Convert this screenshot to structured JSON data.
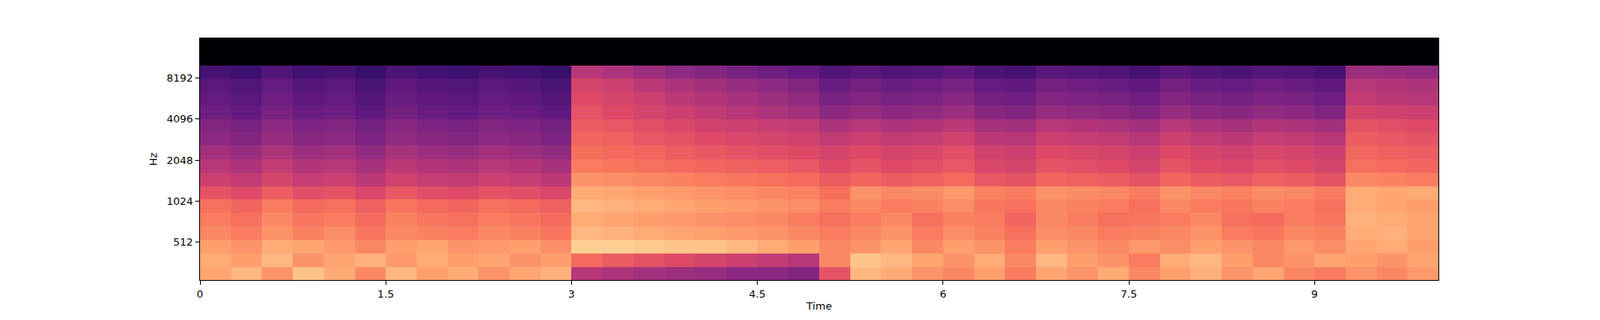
{
  "chart_data": {
    "type": "heatmap",
    "xlabel": "Time",
    "ylabel": "Hz",
    "log": "y",
    "xlim": [
      0,
      10
    ],
    "xticks": [
      0,
      1.5,
      3,
      4.5,
      6,
      7.5,
      9
    ],
    "ylim": [
      270,
      16000
    ],
    "yticks": [
      512,
      1024,
      2048,
      4096,
      8192
    ],
    "zlim": [
      -80,
      0
    ],
    "x": [
      0.125,
      0.375,
      0.625,
      0.875,
      1.125,
      1.375,
      1.625,
      1.875,
      2.125,
      2.375,
      2.625,
      2.875,
      3.125,
      3.375,
      3.625,
      3.875,
      4.125,
      4.375,
      4.625,
      4.875,
      5.125,
      5.375,
      5.625,
      5.875,
      6.125,
      6.375,
      6.625,
      6.875,
      7.125,
      7.375,
      7.625,
      7.875,
      8.125,
      8.375,
      8.625,
      8.875,
      9.125,
      9.375,
      9.625,
      9.875
    ],
    "y": [
      300,
      380,
      475,
      600,
      750,
      940,
      1180,
      1480,
      1860,
      2330,
      2920,
      3670,
      4600,
      5770,
      7240,
      9080,
      11400,
      14300
    ],
    "z": [
      [
        -15,
        -12,
        -18,
        -10,
        -14,
        -20,
        -12,
        -16,
        -14,
        -18,
        -15,
        -13,
        -40,
        -42,
        -44,
        -45,
        -46,
        -48,
        -48,
        -50,
        -30,
        -12,
        -14,
        -18,
        -20,
        -16,
        -22,
        -15,
        -18,
        -14,
        -20,
        -16,
        -13,
        -18,
        -15,
        -20,
        -22,
        -18,
        -20,
        -17
      ],
      [
        -14,
        -16,
        -12,
        -18,
        -15,
        -13,
        -17,
        -14,
        -16,
        -15,
        -18,
        -16,
        -25,
        -28,
        -30,
        -32,
        -34,
        -36,
        -38,
        -40,
        -20,
        -10,
        -12,
        -15,
        -18,
        -14,
        -20,
        -12,
        -16,
        -18,
        -22,
        -14,
        -12,
        -16,
        -20,
        -18,
        -15,
        -16,
        -18,
        -15
      ],
      [
        -16,
        -18,
        -14,
        -15,
        -17,
        -20,
        -16,
        -15,
        -18,
        -17,
        -16,
        -19,
        -8,
        -8,
        -9,
        -10,
        -10,
        -12,
        -14,
        -16,
        -20,
        -18,
        -15,
        -20,
        -16,
        -18,
        -22,
        -16,
        -18,
        -20,
        -17,
        -19,
        -16,
        -18,
        -20,
        -17,
        -19,
        -15,
        -14,
        -16
      ],
      [
        -20,
        -22,
        -18,
        -21,
        -19,
        -23,
        -20,
        -21,
        -22,
        -20,
        -21,
        -23,
        -12,
        -13,
        -14,
        -15,
        -16,
        -17,
        -18,
        -20,
        -22,
        -20,
        -18,
        -22,
        -19,
        -21,
        -24,
        -19,
        -20,
        -22,
        -21,
        -20,
        -18,
        -22,
        -23,
        -20,
        -21,
        -14,
        -13,
        -15
      ],
      [
        -22,
        -24,
        -20,
        -23,
        -22,
        -25,
        -21,
        -23,
        -24,
        -22,
        -23,
        -25,
        -14,
        -15,
        -16,
        -17,
        -18,
        -19,
        -20,
        -22,
        -24,
        -22,
        -20,
        -24,
        -21,
        -22,
        -26,
        -20,
        -22,
        -24,
        -23,
        -22,
        -20,
        -24,
        -25,
        -22,
        -23,
        -13,
        -14,
        -15
      ],
      [
        -24,
        -26,
        -22,
        -25,
        -24,
        -27,
        -23,
        -25,
        -26,
        -24,
        -25,
        -27,
        -12,
        -13,
        -14,
        -15,
        -16,
        -17,
        -18,
        -19,
        -22,
        -20,
        -22,
        -21,
        -19,
        -23,
        -24,
        -20,
        -21,
        -22,
        -24,
        -20,
        -22,
        -23,
        -21,
        -22,
        -24,
        -14,
        -15,
        -16
      ],
      [
        -30,
        -32,
        -28,
        -31,
        -30,
        -33,
        -29,
        -31,
        -32,
        -30,
        -31,
        -33,
        -14,
        -15,
        -16,
        -17,
        -18,
        -19,
        -20,
        -21,
        -24,
        -18,
        -20,
        -19,
        -17,
        -21,
        -22,
        -18,
        -19,
        -20,
        -22,
        -18,
        -20,
        -21,
        -19,
        -20,
        -22,
        -14,
        -15,
        -14
      ],
      [
        -36,
        -38,
        -34,
        -37,
        -36,
        -39,
        -35,
        -37,
        -38,
        -36,
        -37,
        -39,
        -18,
        -19,
        -20,
        -21,
        -22,
        -23,
        -24,
        -25,
        -28,
        -26,
        -28,
        -27,
        -25,
        -29,
        -30,
        -26,
        -27,
        -28,
        -30,
        -26,
        -28,
        -29,
        -27,
        -28,
        -30,
        -20,
        -21,
        -22
      ],
      [
        -40,
        -42,
        -38,
        -41,
        -40,
        -43,
        -39,
        -41,
        -42,
        -40,
        -41,
        -43,
        -22,
        -23,
        -24,
        -25,
        -26,
        -27,
        -28,
        -29,
        -32,
        -30,
        -32,
        -31,
        -29,
        -33,
        -34,
        -30,
        -31,
        -32,
        -34,
        -30,
        -32,
        -33,
        -31,
        -32,
        -34,
        -24,
        -25,
        -26
      ],
      [
        -44,
        -46,
        -42,
        -45,
        -44,
        -47,
        -43,
        -45,
        -46,
        -44,
        -45,
        -47,
        -24,
        -25,
        -26,
        -28,
        -29,
        -30,
        -31,
        -32,
        -34,
        -32,
        -34,
        -33,
        -31,
        -35,
        -36,
        -32,
        -33,
        -34,
        -36,
        -32,
        -34,
        -35,
        -33,
        -34,
        -36,
        -26,
        -27,
        -28
      ],
      [
        -48,
        -50,
        -46,
        -49,
        -48,
        -51,
        -47,
        -49,
        -50,
        -48,
        -49,
        -51,
        -26,
        -27,
        -29,
        -30,
        -32,
        -33,
        -34,
        -35,
        -38,
        -36,
        -38,
        -37,
        -35,
        -39,
        -40,
        -36,
        -37,
        -38,
        -40,
        -36,
        -38,
        -39,
        -37,
        -38,
        -40,
        -28,
        -29,
        -30
      ],
      [
        -50,
        -52,
        -48,
        -51,
        -50,
        -53,
        -49,
        -51,
        -52,
        -50,
        -51,
        -53,
        -28,
        -29,
        -31,
        -33,
        -35,
        -36,
        -37,
        -38,
        -42,
        -40,
        -42,
        -41,
        -39,
        -43,
        -44,
        -40,
        -41,
        -42,
        -44,
        -40,
        -42,
        -43,
        -41,
        -42,
        -44,
        -30,
        -31,
        -32
      ],
      [
        -54,
        -56,
        -52,
        -55,
        -54,
        -57,
        -53,
        -55,
        -56,
        -54,
        -55,
        -57,
        -30,
        -32,
        -34,
        -36,
        -38,
        -40,
        -42,
        -44,
        -48,
        -46,
        -48,
        -47,
        -45,
        -49,
        -50,
        -46,
        -47,
        -48,
        -50,
        -46,
        -48,
        -49,
        -47,
        -48,
        -50,
        -34,
        -35,
        -36
      ],
      [
        -56,
        -58,
        -54,
        -57,
        -56,
        -59,
        -55,
        -57,
        -58,
        -56,
        -57,
        -59,
        -32,
        -34,
        -36,
        -39,
        -41,
        -43,
        -45,
        -47,
        -52,
        -50,
        -52,
        -51,
        -49,
        -53,
        -54,
        -50,
        -51,
        -52,
        -54,
        -50,
        -52,
        -53,
        -51,
        -52,
        -54,
        -38,
        -39,
        -40
      ],
      [
        -58,
        -60,
        -56,
        -59,
        -58,
        -61,
        -57,
        -59,
        -60,
        -58,
        -59,
        -61,
        -34,
        -36,
        -39,
        -42,
        -44,
        -46,
        -48,
        -50,
        -55,
        -53,
        -55,
        -54,
        -52,
        -56,
        -57,
        -53,
        -54,
        -55,
        -57,
        -53,
        -55,
        -56,
        -54,
        -55,
        -57,
        -40,
        -41,
        -42
      ],
      [
        -62,
        -64,
        -60,
        -63,
        -62,
        -65,
        -61,
        -63,
        -64,
        -62,
        -63,
        -65,
        -40,
        -42,
        -45,
        -48,
        -50,
        -52,
        -54,
        -56,
        -60,
        -58,
        -60,
        -59,
        -57,
        -61,
        -62,
        -58,
        -59,
        -60,
        -62,
        -58,
        -60,
        -61,
        -59,
        -60,
        -62,
        -45,
        -46,
        -47
      ],
      [
        -80,
        -80,
        -80,
        -80,
        -80,
        -80,
        -80,
        -80,
        -80,
        -80,
        -80,
        -80,
        -80,
        -80,
        -80,
        -80,
        -80,
        -80,
        -80,
        -80,
        -80,
        -80,
        -80,
        -80,
        -80,
        -80,
        -80,
        -80,
        -80,
        -80,
        -80,
        -80,
        -80,
        -80,
        -80,
        -80,
        -80,
        -80,
        -80,
        -80
      ],
      [
        -80,
        -80,
        -80,
        -80,
        -80,
        -80,
        -80,
        -80,
        -80,
        -80,
        -80,
        -80,
        -80,
        -80,
        -80,
        -80,
        -80,
        -80,
        -80,
        -80,
        -80,
        -80,
        -80,
        -80,
        -80,
        -80,
        -80,
        -80,
        -80,
        -80,
        -80,
        -80,
        -80,
        -80,
        -80,
        -80,
        -80,
        -80,
        -80,
        -80
      ]
    ]
  }
}
